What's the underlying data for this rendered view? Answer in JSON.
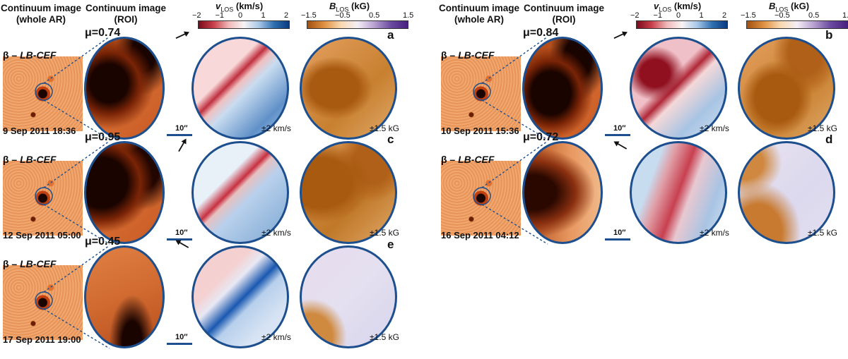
{
  "headers": {
    "whole_ar_line1": "Continuum image",
    "whole_ar_line2": "(whole AR)",
    "roi_line1": "Continuum image",
    "roi_line2": "(ROI)"
  },
  "colorbars": {
    "vlos": {
      "symbol": "v",
      "sub": "LOS",
      "unit": " (km/s)",
      "ticks": [
        "−2",
        "−1",
        "0",
        "1",
        "2"
      ]
    },
    "blos": {
      "symbol": "B",
      "sub": "LOS",
      "unit": " (kG)",
      "ticks": [
        "−1.5",
        "−0.5",
        "0.5",
        "1.5"
      ]
    }
  },
  "common": {
    "beta_prefix": "β – ",
    "beta_model": "LB-CEF",
    "scale_label": "10′′",
    "vlos_range": "±2 km/s",
    "blos_range": "±1.5 kG"
  },
  "panels": [
    {
      "letter": "a",
      "mu": "μ=0.74",
      "date": "9 Sep 2011 18:36"
    },
    {
      "letter": "c",
      "mu": "μ=0.95",
      "date": "12 Sep 2011 05:00"
    },
    {
      "letter": "e",
      "mu": "μ=0.45",
      "date": "17 Sep 2011 19:00"
    },
    {
      "letter": "b",
      "mu": "μ=0.84",
      "date": "10 Sep 2011 15:36"
    },
    {
      "letter": "d",
      "mu": "μ=0.72",
      "date": "16 Sep 2011 04:12"
    }
  ],
  "colors": {
    "frame": "#1d4f8e",
    "photosphere": "#e8a06a",
    "umbra": "#2a0a00",
    "redshift": "#a01020",
    "blueshift": "#1850a0"
  }
}
